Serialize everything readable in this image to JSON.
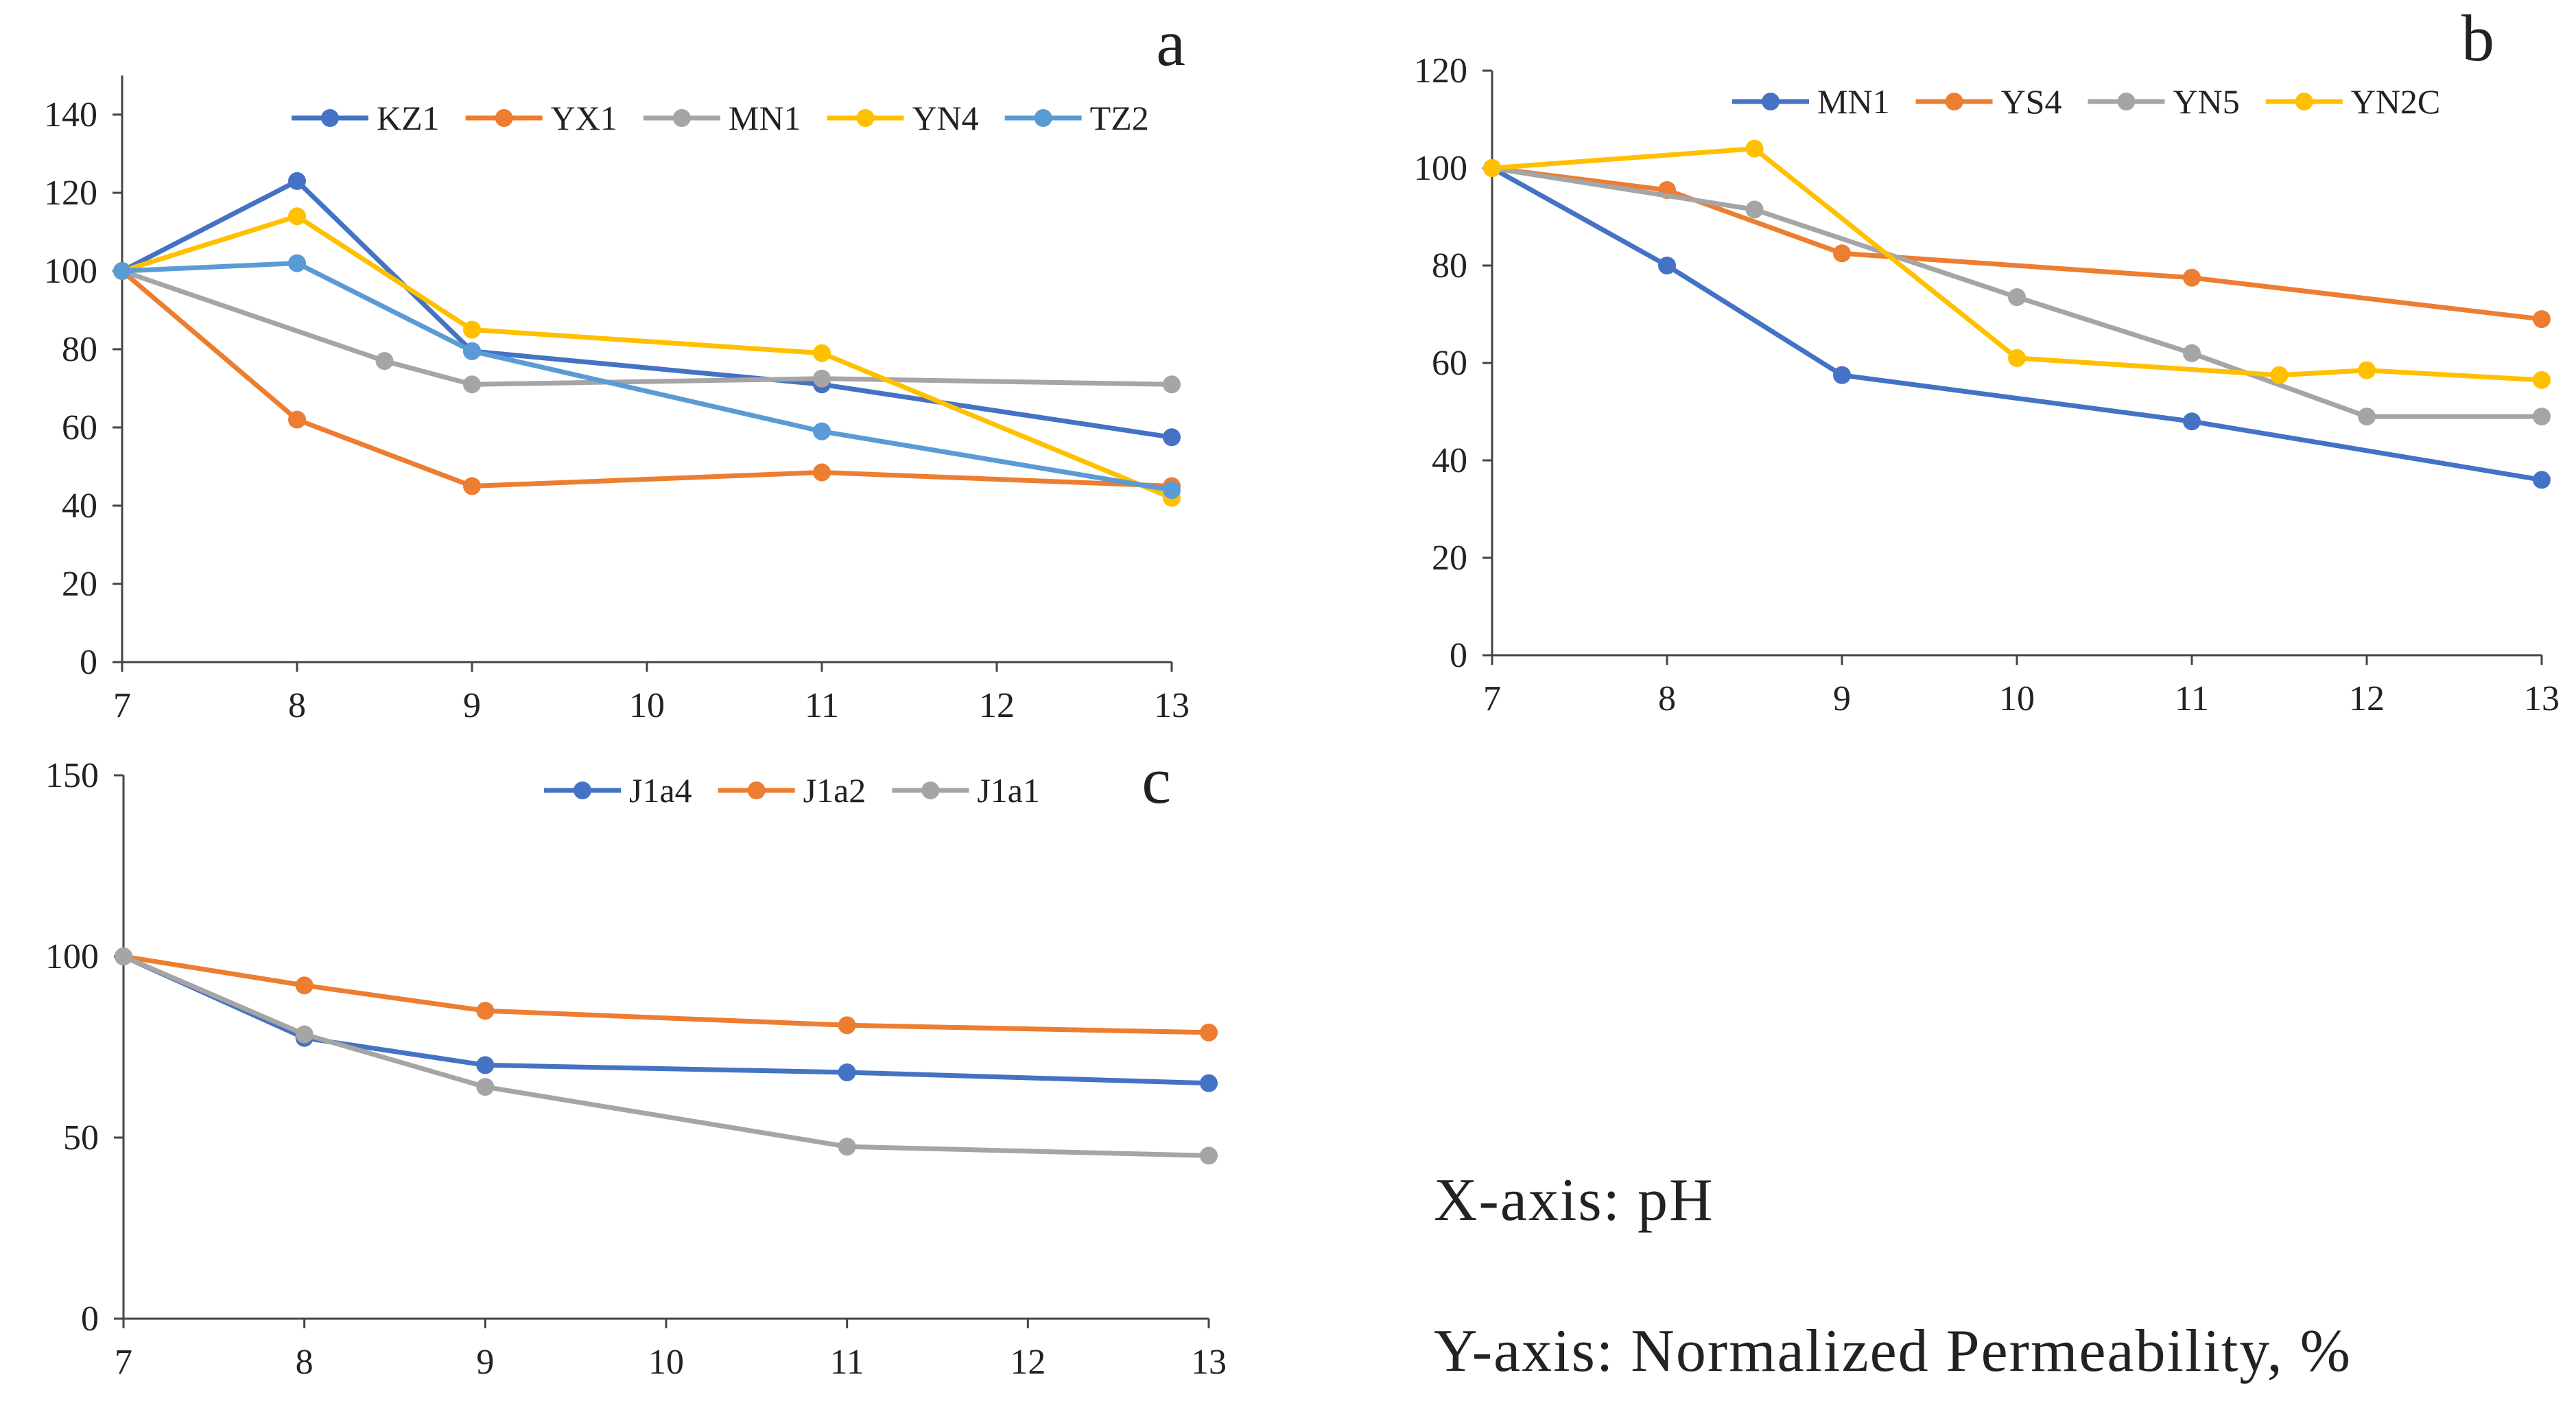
{
  "chart_data": [
    {
      "type": "line",
      "panel": "a",
      "xlim": [
        7,
        13
      ],
      "ylim": [
        0,
        150
      ],
      "x_ticks": [
        7,
        8,
        9,
        10,
        11,
        12,
        13
      ],
      "y_ticks": [
        0,
        20,
        40,
        60,
        80,
        100,
        120,
        140
      ],
      "legend_position": "top-right",
      "series": [
        {
          "name": "KZ1",
          "color": "#4472C4",
          "points": [
            [
              7,
              100
            ],
            [
              8,
              123
            ],
            [
              9,
              79.5
            ],
            [
              11,
              71
            ],
            [
              13,
              57.5
            ]
          ]
        },
        {
          "name": "YX1",
          "color": "#ED7D31",
          "points": [
            [
              7,
              100
            ],
            [
              8,
              62
            ],
            [
              9,
              45
            ],
            [
              11,
              48.5
            ],
            [
              13,
              45
            ]
          ]
        },
        {
          "name": "MN1",
          "color": "#A5A5A5",
          "points": [
            [
              7,
              100
            ],
            [
              8.5,
              77
            ],
            [
              9,
              71
            ],
            [
              11,
              72.5
            ],
            [
              13,
              71
            ]
          ]
        },
        {
          "name": "YN4",
          "color": "#FFC000",
          "points": [
            [
              7,
              100
            ],
            [
              8,
              114
            ],
            [
              9,
              85
            ],
            [
              11,
              79
            ],
            [
              13,
              42
            ]
          ]
        },
        {
          "name": "TZ2",
          "color": "#5B9BD5",
          "points": [
            [
              7,
              100
            ],
            [
              8,
              102
            ],
            [
              9,
              79.5
            ],
            [
              11,
              59
            ],
            [
              13,
              44
            ]
          ]
        }
      ]
    },
    {
      "type": "line",
      "panel": "b",
      "xlim": [
        7,
        13
      ],
      "ylim": [
        0,
        120
      ],
      "x_ticks": [
        7,
        8,
        9,
        10,
        11,
        12,
        13
      ],
      "y_ticks": [
        0,
        20,
        40,
        60,
        80,
        100,
        120
      ],
      "legend_position": "top-right",
      "series": [
        {
          "name": "MN1",
          "color": "#4472C4",
          "points": [
            [
              7,
              100
            ],
            [
              8,
              80
            ],
            [
              9,
              57.5
            ],
            [
              11,
              48
            ],
            [
              13,
              36
            ]
          ]
        },
        {
          "name": "YS4",
          "color": "#ED7D31",
          "points": [
            [
              7,
              100
            ],
            [
              8,
              95.5
            ],
            [
              9,
              82.5
            ],
            [
              11,
              77.5
            ],
            [
              13,
              69
            ]
          ]
        },
        {
          "name": "YN5",
          "color": "#A5A5A5",
          "points": [
            [
              7,
              100
            ],
            [
              8.5,
              91.5
            ],
            [
              10,
              73.5
            ],
            [
              11,
              62
            ],
            [
              12,
              49
            ],
            [
              13,
              49
            ]
          ]
        },
        {
          "name": "YN2C",
          "color": "#FFC000",
          "points": [
            [
              7,
              100
            ],
            [
              8.5,
              104
            ],
            [
              10,
              61
            ],
            [
              11.5,
              57.5
            ],
            [
              12,
              58.5
            ],
            [
              13,
              56.5
            ]
          ]
        }
      ]
    },
    {
      "type": "line",
      "panel": "c",
      "xlim": [
        7,
        13
      ],
      "ylim": [
        0,
        150
      ],
      "x_ticks": [
        7,
        8,
        9,
        10,
        11,
        12,
        13
      ],
      "y_ticks": [
        0,
        50,
        100,
        150
      ],
      "legend_position": "top-right",
      "series": [
        {
          "name": "J1a4",
          "color": "#4472C4",
          "points": [
            [
              7,
              100
            ],
            [
              8,
              77.5
            ],
            [
              9,
              70
            ],
            [
              11,
              68
            ],
            [
              13,
              65
            ]
          ]
        },
        {
          "name": "J1a2",
          "color": "#ED7D31",
          "points": [
            [
              7,
              100
            ],
            [
              8,
              92
            ],
            [
              9,
              85
            ],
            [
              11,
              81
            ],
            [
              13,
              79
            ]
          ]
        },
        {
          "name": "J1a1",
          "color": "#A5A5A5",
          "points": [
            [
              7,
              100
            ],
            [
              8,
              78.5
            ],
            [
              9,
              64
            ],
            [
              11,
              47.5
            ],
            [
              13,
              45
            ]
          ]
        }
      ]
    }
  ],
  "notes": {
    "x_axis": "X-axis: pH",
    "y_axis": "Y-axis: Normalized Permeability, %"
  }
}
